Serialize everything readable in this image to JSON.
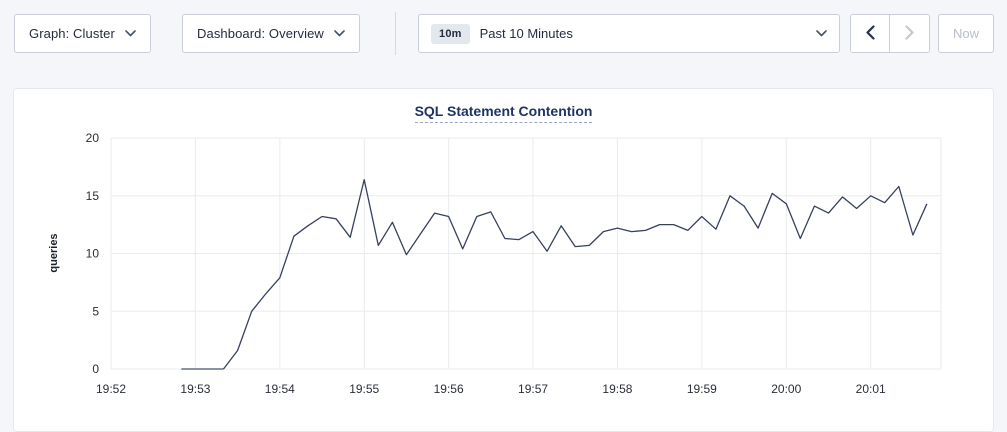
{
  "toolbar": {
    "graph_dropdown_label": "Graph: Cluster",
    "dashboard_dropdown_label": "Dashboard: Overview",
    "range_badge": "10m",
    "range_label": "Past 10 Minutes",
    "now_button_label": "Now"
  },
  "colors": {
    "accent_navy": "#1f3364",
    "line": "#37415f",
    "line_zero_segment": "#8b93a2",
    "gridline": "#e9ebee",
    "control_border": "#c9ced8",
    "disabled": "#c3c8d2",
    "page_bg": "#f4f6f9"
  },
  "chart_data": {
    "type": "line",
    "title": "SQL Statement Contention",
    "xlabel": "",
    "ylabel": "queries",
    "x_ticks": [
      "19:52",
      "19:53",
      "19:54",
      "19:55",
      "19:56",
      "19:57",
      "19:58",
      "19:59",
      "20:00",
      "20:01"
    ],
    "y_ticks": [
      0,
      5,
      10,
      15,
      20
    ],
    "ylim": [
      0,
      20
    ],
    "x_domain_seconds": 590,
    "grid": true,
    "legend": "none",
    "leading_zero_segment_points": 4,
    "series": [
      {
        "name": "queries",
        "start_time": "19:52:50",
        "start_offset_seconds": 50,
        "interval_seconds": 10,
        "values": [
          0,
          0,
          0,
          0,
          1.6,
          5.0,
          6.5,
          7.9,
          11.5,
          12.4,
          13.2,
          13.0,
          11.4,
          16.4,
          10.7,
          12.7,
          9.9,
          11.7,
          13.5,
          13.2,
          10.4,
          13.2,
          13.6,
          11.3,
          11.2,
          11.9,
          10.2,
          12.4,
          10.6,
          10.7,
          11.9,
          12.2,
          11.9,
          12.0,
          12.5,
          12.5,
          12.0,
          13.2,
          12.1,
          15.0,
          14.1,
          12.2,
          15.2,
          14.3,
          11.3,
          14.1,
          13.5,
          14.9,
          13.9,
          15.0,
          14.4,
          15.8,
          11.6,
          14.3
        ]
      }
    ]
  }
}
